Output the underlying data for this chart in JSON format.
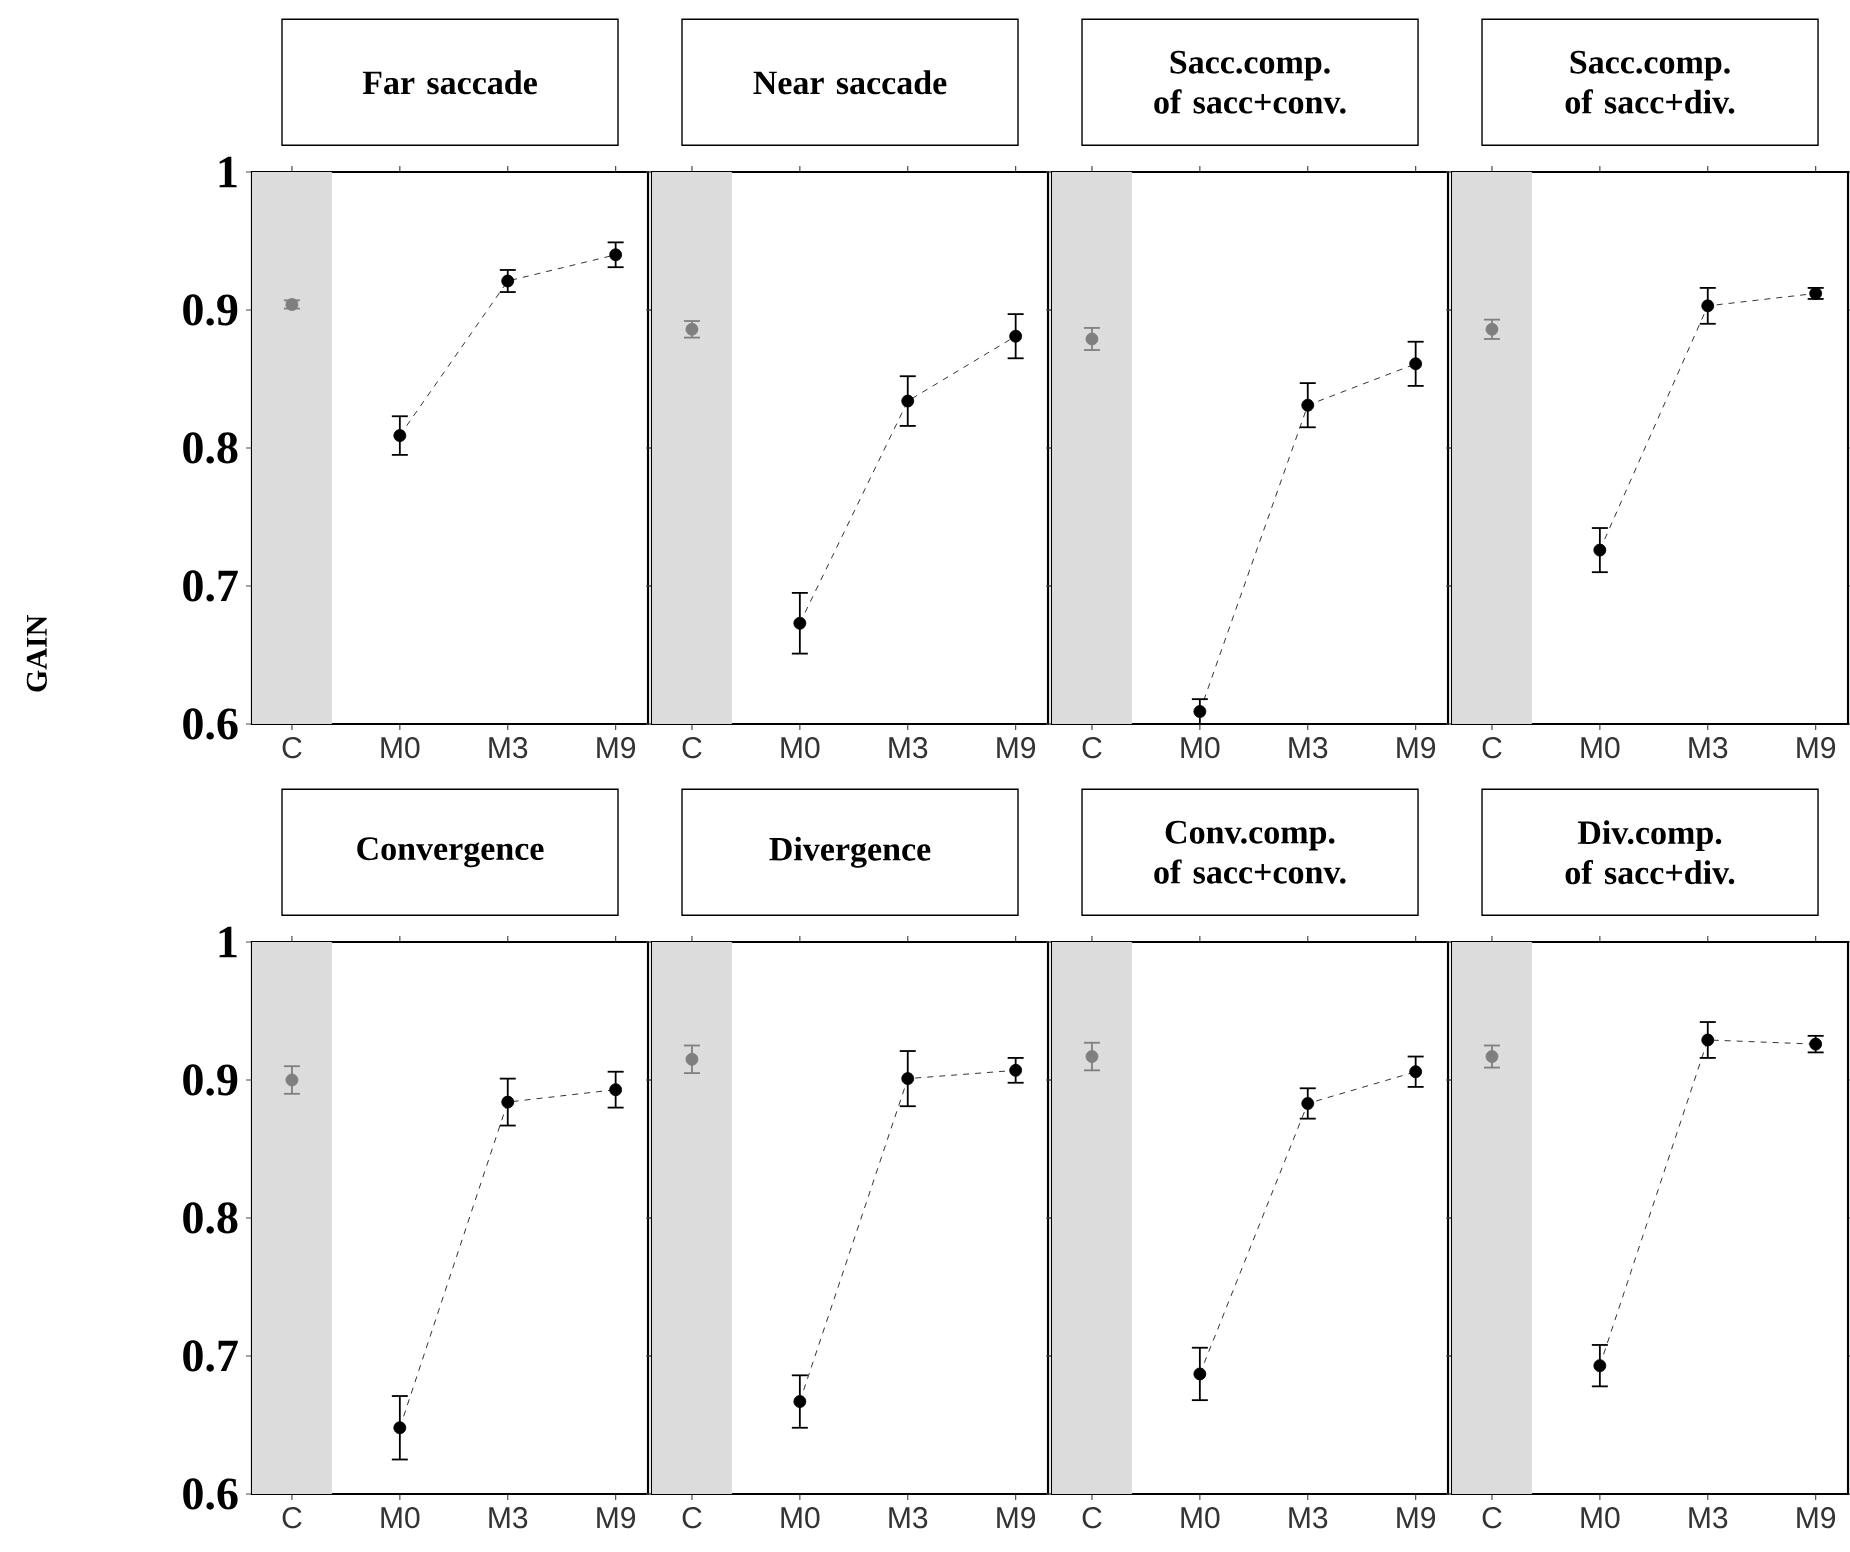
{
  "chart_data": [
    {
      "type": "line",
      "title": "Far saccade",
      "ylabel": "GAIN",
      "categories": [
        "C",
        "M0",
        "M3",
        "M9"
      ],
      "ylim": [
        0.6,
        1
      ],
      "yticks": [
        0.6,
        0.7,
        0.8,
        0.9,
        1
      ],
      "marker": "circle",
      "bands": [
        {
          "axis": "x",
          "from": "C",
          "to": "C",
          "color": "#dcdcdc"
        }
      ],
      "series": [
        {
          "type": "scatter",
          "color": "#7f7f7f",
          "values": [
            0.904,
            null,
            null,
            null
          ],
          "errors": [
            0.003,
            null,
            null,
            null
          ]
        },
        {
          "color": "#000000",
          "line_style": "dashed",
          "values": [
            null,
            0.809,
            0.921,
            0.94
          ],
          "errors": [
            null,
            0.014,
            0.008,
            0.009
          ]
        }
      ]
    },
    {
      "type": "line",
      "title": "Near saccade",
      "categories": [
        "C",
        "M0",
        "M3",
        "M9"
      ],
      "ylim": [
        0.6,
        1
      ],
      "yticks": [
        0.6,
        0.7,
        0.8,
        0.9,
        1
      ],
      "tick_labels": "x",
      "marker": "circle",
      "bands": [
        {
          "axis": "x",
          "from": "C",
          "to": "C",
          "color": "#dcdcdc"
        }
      ],
      "series": [
        {
          "type": "scatter",
          "color": "#7f7f7f",
          "values": [
            0.886,
            null,
            null,
            null
          ],
          "errors": [
            0.006,
            null,
            null,
            null
          ]
        },
        {
          "color": "#000000",
          "line_style": "dashed",
          "values": [
            null,
            0.673,
            0.834,
            0.881
          ],
          "errors": [
            null,
            0.022,
            0.018,
            0.016
          ]
        }
      ]
    },
    {
      "type": "line",
      "title": "Sacc.comp. of sacc+conv.",
      "categories": [
        "C",
        "M0",
        "M3",
        "M9"
      ],
      "ylim": [
        0.6,
        1
      ],
      "yticks": [
        0.6,
        0.7,
        0.8,
        0.9,
        1
      ],
      "tick_labels": "x",
      "marker": "circle",
      "bands": [
        {
          "axis": "x",
          "from": "C",
          "to": "C",
          "color": "#dcdcdc"
        }
      ],
      "series": [
        {
          "type": "scatter",
          "color": "#7f7f7f",
          "values": [
            0.879,
            null,
            null,
            null
          ],
          "errors": [
            0.008,
            null,
            null,
            null
          ]
        },
        {
          "color": "#000000",
          "line_style": "dashed",
          "values": [
            null,
            0.609,
            0.831,
            0.861
          ],
          "errors": [
            null,
            0.009,
            0.016,
            0.016
          ]
        }
      ]
    },
    {
      "type": "line",
      "title": "Sacc.comp. of sacc+div.",
      "categories": [
        "C",
        "M0",
        "M3",
        "M9"
      ],
      "ylim": [
        0.6,
        1
      ],
      "yticks": [
        0.6,
        0.7,
        0.8,
        0.9,
        1
      ],
      "tick_labels": "x",
      "marker": "circle",
      "bands": [
        {
          "axis": "x",
          "from": "C",
          "to": "C",
          "color": "#dcdcdc"
        }
      ],
      "series": [
        {
          "type": "scatter",
          "color": "#7f7f7f",
          "values": [
            0.886,
            null,
            null,
            null
          ],
          "errors": [
            0.007,
            null,
            null,
            null
          ]
        },
        {
          "color": "#000000",
          "line_style": "dashed",
          "values": [
            null,
            0.726,
            0.903,
            0.912
          ],
          "errors": [
            null,
            0.016,
            0.013,
            0.004
          ]
        }
      ]
    },
    {
      "type": "line",
      "title": "Convergence",
      "categories": [
        "C",
        "M0",
        "M3",
        "M9"
      ],
      "ylim": [
        0.6,
        1
      ],
      "yticks": [
        0.6,
        0.7,
        0.8,
        0.9,
        1
      ],
      "marker": "circle",
      "bands": [
        {
          "axis": "x",
          "from": "C",
          "to": "C",
          "color": "#dcdcdc"
        }
      ],
      "series": [
        {
          "type": "scatter",
          "color": "#7f7f7f",
          "values": [
            0.9,
            null,
            null,
            null
          ],
          "errors": [
            0.01,
            null,
            null,
            null
          ]
        },
        {
          "color": "#000000",
          "line_style": "dashed",
          "values": [
            null,
            0.648,
            0.884,
            0.893
          ],
          "errors": [
            null,
            0.023,
            0.017,
            0.013
          ]
        }
      ]
    },
    {
      "type": "line",
      "title": "Divergence",
      "categories": [
        "C",
        "M0",
        "M3",
        "M9"
      ],
      "ylim": [
        0.6,
        1
      ],
      "yticks": [
        0.6,
        0.7,
        0.8,
        0.9,
        1
      ],
      "tick_labels": "x",
      "marker": "circle",
      "bands": [
        {
          "axis": "x",
          "from": "C",
          "to": "C",
          "color": "#dcdcdc"
        }
      ],
      "series": [
        {
          "type": "scatter",
          "color": "#7f7f7f",
          "values": [
            0.915,
            null,
            null,
            null
          ],
          "errors": [
            0.01,
            null,
            null,
            null
          ]
        },
        {
          "color": "#000000",
          "line_style": "dashed",
          "values": [
            null,
            0.667,
            0.901,
            0.907
          ],
          "errors": [
            null,
            0.019,
            0.02,
            0.009
          ]
        }
      ]
    },
    {
      "type": "line",
      "title": "Conv.comp. of sacc+conv.",
      "categories": [
        "C",
        "M0",
        "M3",
        "M9"
      ],
      "ylim": [
        0.6,
        1
      ],
      "yticks": [
        0.6,
        0.7,
        0.8,
        0.9,
        1
      ],
      "tick_labels": "x",
      "marker": "circle",
      "bands": [
        {
          "axis": "x",
          "from": "C",
          "to": "C",
          "color": "#dcdcdc"
        }
      ],
      "series": [
        {
          "type": "scatter",
          "color": "#7f7f7f",
          "values": [
            0.917,
            null,
            null,
            null
          ],
          "errors": [
            0.01,
            null,
            null,
            null
          ]
        },
        {
          "color": "#000000",
          "line_style": "dashed",
          "values": [
            null,
            0.687,
            0.883,
            0.906
          ],
          "errors": [
            null,
            0.019,
            0.011,
            0.011
          ]
        }
      ]
    },
    {
      "type": "line",
      "title": "Div.comp. of sacc+div.",
      "categories": [
        "C",
        "M0",
        "M3",
        "M9"
      ],
      "ylim": [
        0.6,
        1
      ],
      "yticks": [
        0.6,
        0.7,
        0.8,
        0.9,
        1
      ],
      "tick_labels": "x",
      "marker": "circle",
      "bands": [
        {
          "axis": "x",
          "from": "C",
          "to": "C",
          "color": "#dcdcdc"
        }
      ],
      "series": [
        {
          "type": "scatter",
          "color": "#7f7f7f",
          "values": [
            0.917,
            null,
            null,
            null
          ],
          "errors": [
            0.008,
            null,
            null,
            null
          ]
        },
        {
          "color": "#000000",
          "line_style": "dashed",
          "values": [
            null,
            0.693,
            0.929,
            0.926
          ],
          "errors": [
            null,
            0.015,
            0.013,
            0.006
          ]
        }
      ]
    }
  ]
}
